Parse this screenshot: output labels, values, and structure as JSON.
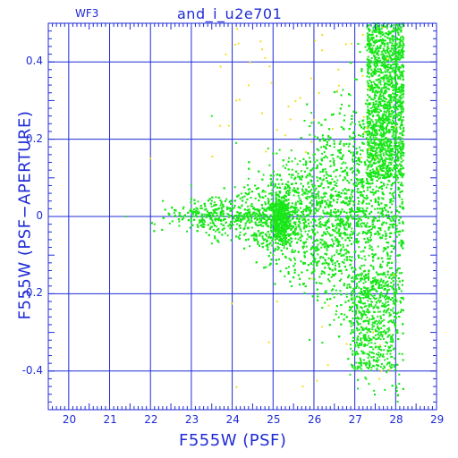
{
  "header": {
    "panel_label": "WF3",
    "title": "and_i_u2e701"
  },
  "chart_data": {
    "type": "scatter",
    "title": "and_i_u2e701",
    "xlabel": "F555W (PSF)",
    "ylabel": "F555W (PSF−APERTURE)",
    "xlim": [
      19.5,
      29
    ],
    "ylim": [
      -0.5,
      0.5
    ],
    "x_ticks": [
      20,
      21,
      22,
      23,
      24,
      25,
      26,
      27,
      28,
      29
    ],
    "y_ticks": [
      -0.4,
      -0.2,
      0,
      0.2,
      0.4
    ],
    "y_tick_labels": [
      "-0.4",
      "-0.2",
      "0",
      "0.2",
      "0.4"
    ],
    "grid": true,
    "colors": {
      "frame": "#1f2bd6",
      "primary_points": "#19e619",
      "secondary_points": "#f2e21e",
      "background": "#ffffff"
    },
    "series": [
      {
        "color_key": "primary_points",
        "description_points": [
          [
            21.4,
            0.0
          ],
          [
            22.1,
            -0.02
          ],
          [
            22.3,
            0.04
          ],
          [
            22.6,
            0.0
          ],
          [
            22.8,
            0.02
          ],
          [
            23.0,
            0.08
          ],
          [
            23.2,
            -0.01
          ],
          [
            23.4,
            0.0
          ],
          [
            23.6,
            0.01
          ],
          [
            23.8,
            0.0
          ],
          [
            24.0,
            0.02
          ],
          [
            24.2,
            -0.03
          ],
          [
            24.4,
            0.01
          ],
          [
            24.6,
            -0.05
          ],
          [
            24.8,
            0.0
          ],
          [
            25.0,
            -0.02
          ],
          [
            25.1,
            0.03
          ],
          [
            25.2,
            -0.06
          ],
          [
            25.3,
            0.02
          ],
          [
            25.4,
            -0.03
          ],
          [
            24.1,
            0.19
          ],
          [
            23.5,
            0.26
          ],
          [
            26.0,
            0.15
          ],
          [
            26.5,
            -0.1
          ],
          [
            27.0,
            0.1
          ],
          [
            27.5,
            0.2
          ],
          [
            27.8,
            0.35
          ],
          [
            28.0,
            0.45
          ],
          [
            27.6,
            -0.3
          ],
          [
            27.2,
            -0.35
          ],
          [
            28.1,
            0.05
          ],
          [
            27.9,
            -0.15
          ],
          [
            26.8,
            0.05
          ],
          [
            26.2,
            -0.05
          ],
          [
            25.8,
            0.0
          ]
        ]
      },
      {
        "color_key": "secondary_points",
        "description_points": [
          [
            22.0,
            0.15
          ],
          [
            24.1,
            0.3
          ],
          [
            25.1,
            -0.22
          ],
          [
            26.2,
            0.43
          ],
          [
            26.6,
            0.38
          ],
          [
            26.8,
            -0.33
          ],
          [
            27.2,
            0.47
          ],
          [
            27.7,
            0.49
          ],
          [
            26.0,
            0.25
          ],
          [
            27.6,
            0.12
          ]
        ]
      }
    ]
  }
}
